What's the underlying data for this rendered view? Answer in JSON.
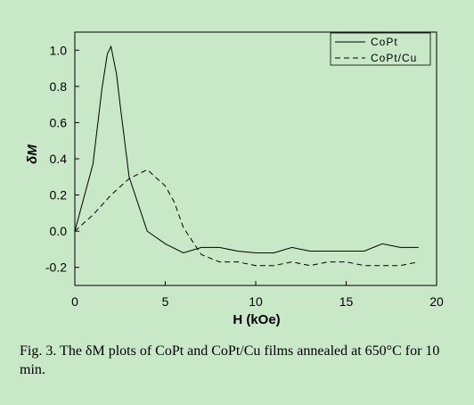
{
  "chart_data": {
    "type": "line",
    "title": "",
    "xlabel": "H (kOe)",
    "ylabel": "δM",
    "xlim": [
      0,
      20
    ],
    "ylim": [
      -0.3,
      1.1
    ],
    "xticks": [
      0,
      5,
      10,
      15,
      20
    ],
    "yticks": [
      -0.2,
      0.0,
      0.2,
      0.4,
      0.6,
      0.8,
      1.0
    ],
    "xtick_labels": [
      "0",
      "5",
      "10",
      "15",
      "20"
    ],
    "ytick_labels": [
      "-0.2",
      "0.0",
      "0.2",
      "0.4",
      "0.6",
      "0.8",
      "1.0"
    ],
    "grid": false,
    "legend_position": "top-right",
    "series": [
      {
        "name": "CoPt",
        "style": "solid",
        "x": [
          0,
          1,
          1.5,
          1.8,
          2,
          2.3,
          2.5,
          3,
          4,
          5,
          6,
          7,
          8,
          9,
          10,
          11,
          12,
          13,
          14,
          15,
          16,
          17,
          18,
          19
        ],
        "y": [
          0.0,
          0.37,
          0.79,
          0.98,
          1.02,
          0.87,
          0.7,
          0.3,
          0.0,
          -0.07,
          -0.12,
          -0.09,
          -0.09,
          -0.11,
          -0.12,
          -0.12,
          -0.09,
          -0.11,
          -0.11,
          -0.11,
          -0.11,
          -0.07,
          -0.09,
          -0.09
        ]
      },
      {
        "name": "CoPt/Cu",
        "style": "dashed",
        "x": [
          0,
          1,
          2,
          3,
          4,
          5,
          5.5,
          6,
          7,
          8,
          9,
          10,
          11,
          12,
          13,
          14,
          15,
          16,
          17,
          18,
          19
        ],
        "y": [
          0.0,
          0.09,
          0.2,
          0.29,
          0.34,
          0.25,
          0.16,
          0.02,
          -0.13,
          -0.17,
          -0.17,
          -0.19,
          -0.19,
          -0.17,
          -0.19,
          -0.17,
          -0.17,
          -0.19,
          -0.19,
          -0.19,
          -0.17
        ]
      }
    ]
  },
  "caption": "Fig. 3.  The δM plots of CoPt and CoPt/Cu films annealed at 650°C for 10 min.",
  "colors": {
    "background": "#c8e8c8",
    "plot_background": "#c8e8c8",
    "line": "#000000"
  }
}
